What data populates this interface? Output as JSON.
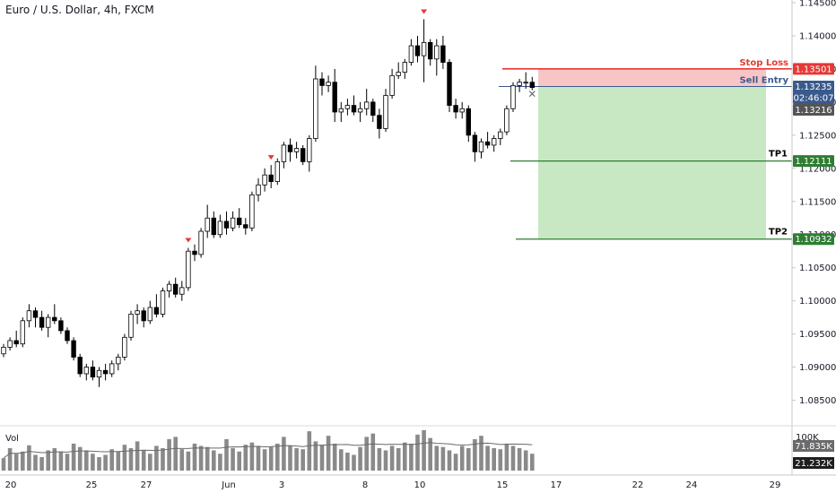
{
  "chart_data": {
    "type": "candlestick",
    "title": "Euro / U.S. Dollar, 4h, FXCM",
    "symbol": "EURUSD",
    "timeframe": "4h",
    "source": "FXCM",
    "ylim": [
      1.0825,
      1.145
    ],
    "yticks": [
      "1.14500",
      "1.14000",
      "1.13500",
      "1.13000",
      "1.12500",
      "1.12000",
      "1.11500",
      "1.11000",
      "1.10500",
      "1.10000",
      "1.09500",
      "1.09000",
      "1.08500"
    ],
    "xticks": [
      "20",
      "25",
      "27",
      "Jun",
      "3",
      "8",
      "10",
      "15",
      "17",
      "22",
      "24",
      "29"
    ],
    "candles": [
      [
        1.092,
        1.0935,
        1.0915,
        1.093
      ],
      [
        1.093,
        1.0945,
        1.0925,
        1.094
      ],
      [
        1.094,
        1.0955,
        1.093,
        1.0935
      ],
      [
        1.0935,
        1.0975,
        1.093,
        1.097
      ],
      [
        1.097,
        1.0995,
        1.096,
        1.0985
      ],
      [
        1.0985,
        1.099,
        1.096,
        1.0975
      ],
      [
        1.0975,
        1.0985,
        1.0955,
        1.096
      ],
      [
        1.096,
        1.098,
        1.0945,
        1.0975
      ],
      [
        1.0975,
        1.0995,
        1.0965,
        1.097
      ],
      [
        1.097,
        1.0975,
        1.095,
        1.0955
      ],
      [
        1.0955,
        1.096,
        1.0935,
        1.094
      ],
      [
        1.094,
        1.0945,
        1.091,
        1.0915
      ],
      [
        1.0915,
        1.092,
        1.0885,
        1.089
      ],
      [
        1.089,
        1.0905,
        1.088,
        1.09
      ],
      [
        1.09,
        1.091,
        1.088,
        1.0885
      ],
      [
        1.0885,
        1.09,
        1.087,
        1.0895
      ],
      [
        1.0895,
        1.0905,
        1.088,
        1.089
      ],
      [
        1.089,
        1.091,
        1.0885,
        1.0905
      ],
      [
        1.0905,
        1.092,
        1.0895,
        1.0915
      ],
      [
        1.0915,
        1.095,
        1.091,
        1.0945
      ],
      [
        1.0945,
        1.0985,
        1.094,
        1.098
      ],
      [
        1.098,
        1.0995,
        1.0965,
        1.0985
      ],
      [
        1.0985,
        1.099,
        1.096,
        1.097
      ],
      [
        1.097,
        1.1,
        1.0965,
        1.099
      ],
      [
        1.099,
        1.101,
        1.0975,
        1.098
      ],
      [
        1.098,
        1.102,
        1.0975,
        1.1015
      ],
      [
        1.1015,
        1.103,
        1.1005,
        1.1025
      ],
      [
        1.1025,
        1.1035,
        1.1005,
        1.101
      ],
      [
        1.101,
        1.103,
        1.1,
        1.102
      ],
      [
        1.102,
        1.108,
        1.1015,
        1.1075
      ],
      [
        1.1075,
        1.1085,
        1.106,
        1.107
      ],
      [
        1.107,
        1.111,
        1.1065,
        1.1105
      ],
      [
        1.1105,
        1.1145,
        1.1095,
        1.1125
      ],
      [
        1.1125,
        1.1135,
        1.1095,
        1.11
      ],
      [
        1.11,
        1.113,
        1.1095,
        1.112
      ],
      [
        1.112,
        1.1135,
        1.11,
        1.111
      ],
      [
        1.111,
        1.1135,
        1.1105,
        1.1125
      ],
      [
        1.1125,
        1.114,
        1.111,
        1.1115
      ],
      [
        1.1115,
        1.1125,
        1.11,
        1.111
      ],
      [
        1.111,
        1.1165,
        1.1105,
        1.116
      ],
      [
        1.116,
        1.1185,
        1.115,
        1.1175
      ],
      [
        1.1175,
        1.12,
        1.1165,
        1.119
      ],
      [
        1.119,
        1.1205,
        1.117,
        1.118
      ],
      [
        1.118,
        1.1215,
        1.1175,
        1.121
      ],
      [
        1.121,
        1.124,
        1.12,
        1.1235
      ],
      [
        1.1235,
        1.1245,
        1.121,
        1.1225
      ],
      [
        1.1225,
        1.124,
        1.1215,
        1.123
      ],
      [
        1.123,
        1.1235,
        1.1205,
        1.121
      ],
      [
        1.121,
        1.125,
        1.1195,
        1.1245
      ],
      [
        1.1245,
        1.1355,
        1.124,
        1.1335
      ],
      [
        1.1335,
        1.1345,
        1.131,
        1.1325
      ],
      [
        1.1325,
        1.134,
        1.1315,
        1.133
      ],
      [
        1.133,
        1.135,
        1.127,
        1.1285
      ],
      [
        1.1285,
        1.13,
        1.127,
        1.129
      ],
      [
        1.129,
        1.1305,
        1.128,
        1.1295
      ],
      [
        1.1295,
        1.131,
        1.128,
        1.1285
      ],
      [
        1.1285,
        1.13,
        1.127,
        1.129
      ],
      [
        1.129,
        1.132,
        1.128,
        1.13
      ],
      [
        1.13,
        1.1305,
        1.127,
        1.128
      ],
      [
        1.128,
        1.129,
        1.1245,
        1.126
      ],
      [
        1.126,
        1.132,
        1.1255,
        1.131
      ],
      [
        1.131,
        1.135,
        1.1305,
        1.134
      ],
      [
        1.134,
        1.136,
        1.1335,
        1.1345
      ],
      [
        1.1345,
        1.1365,
        1.1335,
        1.136
      ],
      [
        1.136,
        1.1395,
        1.1355,
        1.1385
      ],
      [
        1.1385,
        1.14,
        1.136,
        1.137
      ],
      [
        1.137,
        1.1425,
        1.133,
        1.139
      ],
      [
        1.139,
        1.1395,
        1.1355,
        1.1365
      ],
      [
        1.1365,
        1.1395,
        1.134,
        1.1385
      ],
      [
        1.1385,
        1.14,
        1.135,
        1.136
      ],
      [
        1.136,
        1.1365,
        1.1285,
        1.1295
      ],
      [
        1.1295,
        1.1305,
        1.1275,
        1.1285
      ],
      [
        1.1285,
        1.13,
        1.1275,
        1.129
      ],
      [
        1.129,
        1.1295,
        1.124,
        1.125
      ],
      [
        1.125,
        1.1255,
        1.121,
        1.1225
      ],
      [
        1.1225,
        1.1245,
        1.1215,
        1.124
      ],
      [
        1.124,
        1.1255,
        1.123,
        1.1235
      ],
      [
        1.1235,
        1.125,
        1.1225,
        1.1245
      ],
      [
        1.1245,
        1.126,
        1.1235,
        1.1255
      ],
      [
        1.1255,
        1.1295,
        1.125,
        1.129
      ],
      [
        1.129,
        1.133,
        1.1285,
        1.1325
      ],
      [
        1.1325,
        1.1335,
        1.1315,
        1.133
      ],
      [
        1.133,
        1.1345,
        1.132,
        1.133
      ],
      [
        1.133,
        1.1338,
        1.1318,
        1.1322
      ]
    ],
    "volume": [
      22,
      40,
      30,
      34,
      45,
      28,
      24,
      36,
      40,
      34,
      30,
      48,
      42,
      36,
      30,
      24,
      28,
      38,
      34,
      46,
      40,
      52,
      36,
      30,
      44,
      40,
      56,
      60,
      38,
      34,
      48,
      44,
      42,
      36,
      30,
      56,
      40,
      34,
      46,
      50,
      44,
      38,
      42,
      48,
      60,
      44,
      40,
      38,
      70,
      52,
      46,
      62,
      48,
      38,
      32,
      28,
      42,
      60,
      66,
      40,
      36,
      44,
      40,
      50,
      48,
      64,
      72,
      58,
      44,
      42,
      36,
      30,
      44,
      40,
      56,
      62,
      44,
      40,
      38,
      48,
      44,
      40,
      36,
      30
    ],
    "volume_label": "Vol",
    "volume_ticks": [
      "100K"
    ],
    "volume_ma_label": "71.835K",
    "volume_last_label": "21.232K",
    "signal_markers": [
      {
        "index": 29
      },
      {
        "index": 42
      },
      {
        "index": 66
      }
    ],
    "trade_setup": {
      "stop_loss": {
        "label": "Stop Loss",
        "price": 1.13501,
        "price_label": "1.13501",
        "color": "#e53935"
      },
      "sell_entry": {
        "label": "Sell Entry",
        "price": 1.13235,
        "price_label": "1.13235",
        "color": "#3a5a8c"
      },
      "tp1": {
        "label": "TP1",
        "price": 1.12111,
        "price_label": "1.12111",
        "color": "#2e7d32"
      },
      "tp2": {
        "label": "TP2",
        "price": 1.10932,
        "price_label": "1.10932",
        "color": "#2e7d32"
      }
    },
    "current_price": {
      "label": "1.13235",
      "countdown": "02:46:07",
      "color": "#3a5a8c"
    },
    "last_close": {
      "label": "1.13216",
      "color": "#555555"
    },
    "colors": {
      "up": "#ffffff",
      "down": "#000000",
      "wick": "#000000",
      "risk_zone": "#f7c5c5",
      "reward_zone": "#c8e8c4",
      "marker": "#e53935",
      "volume_bar": "#8a8a8a",
      "volume_ma": "#6a6a6a"
    }
  }
}
